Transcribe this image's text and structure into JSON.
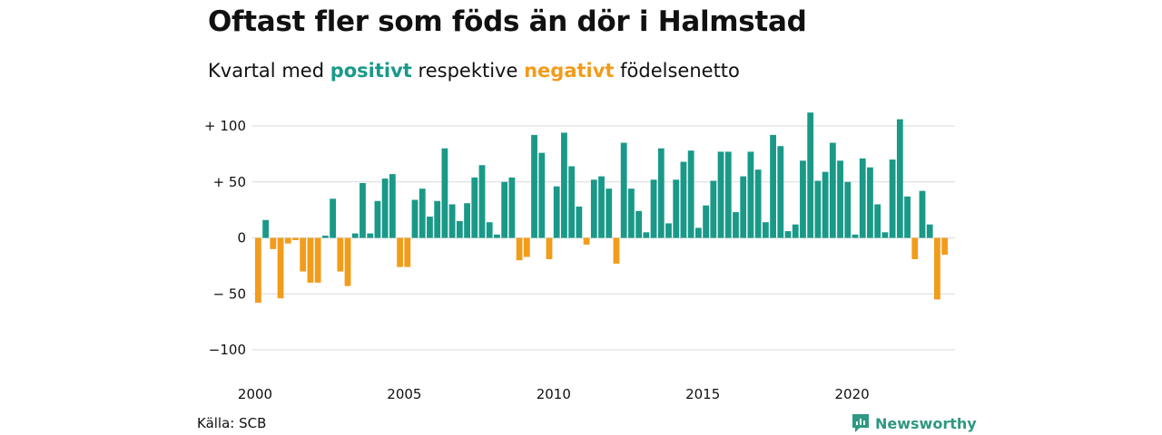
{
  "title": "Oftast fler som föds än dör i Halmstad",
  "subtitle": {
    "before": "Kvartal med",
    "positive": "positivt",
    "middle": "respektive",
    "negative": "negativt",
    "after": "födelsenetto"
  },
  "source": "Källa: SCB",
  "brand": "Newsworthy",
  "colors": {
    "positive": "#1a9988",
    "negative": "#f29c1b",
    "grid": "#d9d9d9",
    "brand": "#2f9882"
  },
  "chart_data": {
    "type": "bar",
    "title": "Oftast fler som föds än dör i Halmstad",
    "subtitle": "Kvartal med positivt respektive negativt födelsenetto",
    "xlabel": "",
    "ylabel": "",
    "ylim": [
      -100,
      100
    ],
    "yticks": [
      {
        "value": 100,
        "label": "+ 100"
      },
      {
        "value": 50,
        "label": "+  50"
      },
      {
        "value": 0,
        "label": "0"
      },
      {
        "value": -50,
        "label": "− 50"
      },
      {
        "value": -100,
        "label": "−100"
      }
    ],
    "xticks": [
      "2000",
      "2005",
      "2010",
      "2015",
      "2020"
    ],
    "grid": true,
    "start_year": 2000,
    "values": [
      -58,
      16,
      -10,
      -54,
      -5,
      -2,
      -30,
      -40,
      -40,
      2,
      35,
      -30,
      -43,
      4,
      49,
      4,
      33,
      53,
      57,
      -26,
      -26,
      34,
      44,
      19,
      33,
      80,
      30,
      15,
      31,
      54,
      65,
      14,
      3,
      50,
      54,
      -20,
      -17,
      92,
      76,
      -19,
      46,
      94,
      64,
      28,
      -6,
      52,
      55,
      44,
      -23,
      85,
      44,
      24,
      5,
      52,
      80,
      13,
      52,
      68,
      78,
      9,
      29,
      51,
      77,
      77,
      23,
      55,
      77,
      61,
      14,
      92,
      82,
      6,
      12,
      69,
      112,
      51,
      59,
      85,
      69,
      50,
      3,
      71,
      63,
      30,
      5,
      70,
      106,
      37,
      -19,
      42,
      12,
      -55,
      -15
    ]
  }
}
